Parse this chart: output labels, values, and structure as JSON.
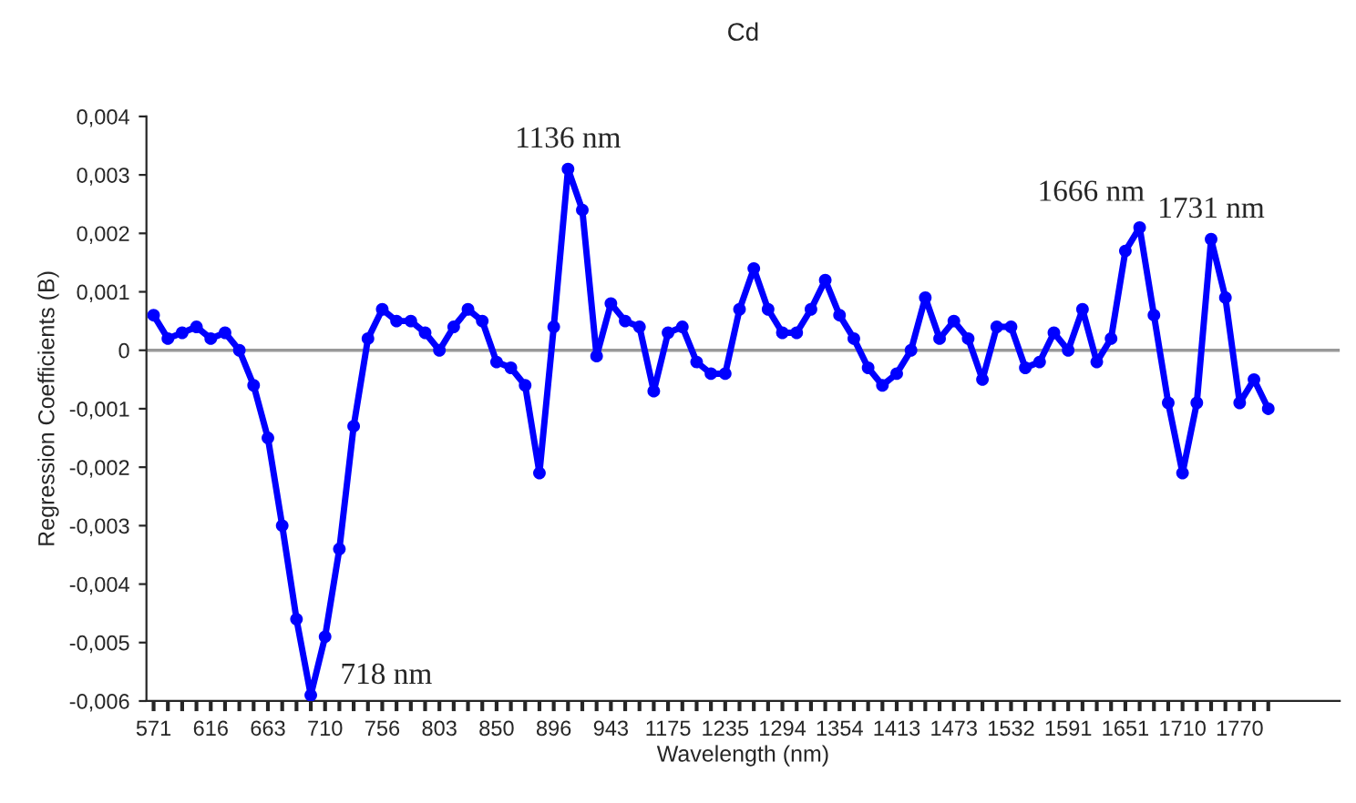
{
  "chart_data": {
    "type": "line",
    "title": "Cd",
    "xlabel": "Wavelength (nm)",
    "ylabel": "Regression Coefficients (B)",
    "categories": [
      "571",
      null,
      null,
      null,
      "616",
      null,
      null,
      null,
      "663",
      null,
      null,
      null,
      "710",
      null,
      null,
      null,
      "756",
      null,
      null,
      null,
      "803",
      null,
      null,
      null,
      "850",
      null,
      null,
      null,
      "896",
      null,
      null,
      null,
      "943",
      null,
      null,
      null,
      "1175",
      null,
      null,
      null,
      "1235",
      null,
      null,
      null,
      "1294",
      null,
      null,
      null,
      "1354",
      null,
      null,
      null,
      "1413",
      null,
      null,
      null,
      "1473",
      null,
      null,
      null,
      "1532",
      null,
      null,
      null,
      "1591",
      null,
      null,
      null,
      "1651",
      null,
      null,
      null,
      "1710",
      null,
      null,
      null,
      "1770",
      null,
      null
    ],
    "ylim": [
      -0.006,
      0.004
    ],
    "yticks": [
      {
        "value": -0.006,
        "label": "-0,006"
      },
      {
        "value": -0.005,
        "label": "-0,005"
      },
      {
        "value": -0.004,
        "label": "-0,004"
      },
      {
        "value": -0.003,
        "label": "-0,003"
      },
      {
        "value": -0.002,
        "label": "-0,002"
      },
      {
        "value": -0.001,
        "label": "-0,001"
      },
      {
        "value": 0,
        "label": "0"
      },
      {
        "value": 0.001,
        "label": "0,001"
      },
      {
        "value": 0.002,
        "label": "0,002"
      },
      {
        "value": 0.003,
        "label": "0,003"
      },
      {
        "value": 0.004,
        "label": "0,004"
      }
    ],
    "series": [
      {
        "color": "#0000ff",
        "values": [
          0.0006,
          0.0002,
          0.0003,
          0.0004,
          0.0002,
          0.0003,
          0.0,
          -0.0006,
          -0.0015,
          -0.003,
          -0.0046,
          -0.0059,
          -0.0049,
          -0.0034,
          -0.0013,
          0.0002,
          0.0007,
          0.0005,
          0.0005,
          0.0003,
          0.0,
          0.0004,
          0.0007,
          0.0005,
          -0.0002,
          -0.0003,
          -0.0006,
          -0.0021,
          0.0004,
          0.0031,
          0.0024,
          -0.0001,
          0.0008,
          0.0005,
          0.0004,
          -0.0007,
          0.0003,
          0.0004,
          -0.0002,
          -0.0004,
          -0.0004,
          0.0007,
          0.0014,
          0.0007,
          0.0003,
          0.0003,
          0.0007,
          0.0012,
          0.0006,
          0.0002,
          -0.0003,
          -0.0006,
          -0.0004,
          0.0,
          0.0009,
          0.0002,
          0.0005,
          0.0002,
          -0.0005,
          0.0004,
          0.0004,
          -0.0003,
          -0.0002,
          0.0003,
          0.0,
          0.0007,
          -0.0002,
          0.0002,
          0.0017,
          0.0021,
          0.0006,
          -0.0009,
          -0.0021,
          -0.0009,
          0.0019,
          0.0009,
          -0.0009,
          -0.0005,
          -0.001
        ]
      }
    ],
    "marker": "circle",
    "line_style": "solid",
    "grid": false,
    "ref_lines": [
      {
        "axis": "y",
        "value": 0,
        "color": "#999999"
      }
    ],
    "annotations": [
      {
        "text": "718 nm",
        "x": "710",
        "y": -0.0059
      },
      "1136 nm",
      {
        "text": "1666 nm",
        "x": "1651",
        "y": 0.0021
      },
      "1731 nm"
    ]
  }
}
